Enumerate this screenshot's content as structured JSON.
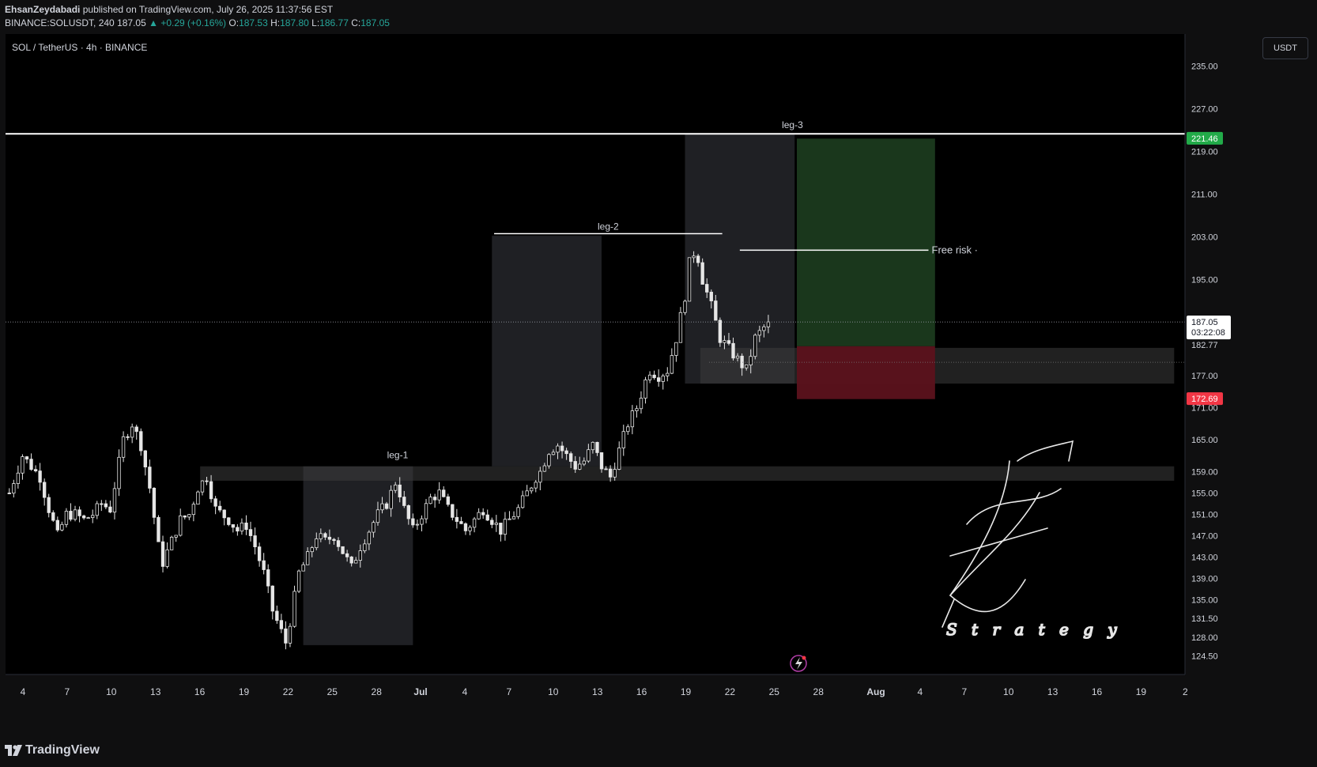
{
  "header": {
    "author": "EhsanZeydabadi",
    "published_text": "published on TradingView.com, July 26, 2025 11:37:56 EST",
    "ticker": "BINANCE:SOLUSDT, 240",
    "last": "187.05",
    "change": "▲ +0.29 (+0.16%)",
    "o_label": "O:",
    "o_value": "187.53",
    "h_label": "H:",
    "h_value": "187.80",
    "l_label": "L:",
    "l_value": "186.77",
    "c_label": "C:",
    "c_value": "187.05"
  },
  "chart_title": "SOL / TetherUS · 4h · BINANCE",
  "unit_button": "USDT",
  "footer": {
    "brand": "TradingView"
  },
  "colors": {
    "background": "#000000",
    "up": "#26a69a",
    "down": "#ef5350",
    "candles": "#e6e6e6",
    "profit_zone": "#1b3a1e",
    "loss_zone": "#5c121c",
    "resistance_line": "#ffffff",
    "price_label_green": "#22ab49",
    "price_label_red": "#f23645"
  },
  "icons": {
    "brand": "tradingview-logo-icon",
    "replay": "lightning-icon"
  },
  "chart_data": {
    "type": "candlestick",
    "instrument": "SOL / TetherUS",
    "timeframe": "4h",
    "exchange": "BINANCE",
    "ylim": [
      121,
      241
    ],
    "y_ticks": [
      "235.00",
      "227.00",
      "219.00",
      "211.00",
      "203.00",
      "195.00",
      "187.05",
      "182.77",
      "177.00",
      "171.00",
      "165.00",
      "159.00",
      "155.00",
      "151.00",
      "147.00",
      "143.00",
      "139.00",
      "135.00",
      "131.50",
      "128.00",
      "124.50"
    ],
    "x_ticks": [
      "4",
      "7",
      "10",
      "13",
      "16",
      "19",
      "22",
      "25",
      "28",
      "Jul",
      "4",
      "7",
      "10",
      "13",
      "16",
      "19",
      "22",
      "25",
      "28",
      "Aug",
      "4",
      "7",
      "10",
      "13",
      "16",
      "19",
      "2"
    ],
    "current_price": {
      "value": 187.05,
      "label": "187.05",
      "countdown": "03:22:08"
    },
    "price_labels": [
      {
        "value": 221.46,
        "label": "221.46",
        "color": "green"
      },
      {
        "value": 172.69,
        "label": "172.69",
        "color": "red"
      }
    ],
    "price_path": [
      [
        0,
        155
      ],
      [
        3,
        162
      ],
      [
        5,
        160
      ],
      [
        7,
        158
      ],
      [
        9,
        152
      ],
      [
        11,
        147
      ],
      [
        13,
        151
      ],
      [
        15,
        151
      ],
      [
        17,
        150
      ],
      [
        19,
        151
      ],
      [
        21,
        153
      ],
      [
        23,
        152
      ],
      [
        26,
        165
      ],
      [
        28,
        168
      ],
      [
        30,
        164
      ],
      [
        32,
        156
      ],
      [
        34,
        145
      ],
      [
        35,
        142
      ],
      [
        37,
        146
      ],
      [
        39,
        150
      ],
      [
        41,
        151
      ],
      [
        43,
        156
      ],
      [
        45,
        158
      ],
      [
        47,
        152
      ],
      [
        50,
        150
      ],
      [
        52,
        148
      ],
      [
        54,
        149
      ],
      [
        56,
        145
      ],
      [
        58,
        140
      ],
      [
        60,
        133
      ],
      [
        62,
        129
      ],
      [
        63,
        127
      ],
      [
        64,
        131
      ],
      [
        66,
        140
      ],
      [
        68,
        143
      ],
      [
        70,
        147
      ],
      [
        72,
        146
      ],
      [
        74,
        147
      ],
      [
        76,
        144
      ],
      [
        78,
        141
      ],
      [
        80,
        145
      ],
      [
        82,
        148
      ],
      [
        84,
        151
      ],
      [
        86,
        153
      ],
      [
        88,
        157
      ],
      [
        89,
        155
      ],
      [
        90,
        152
      ],
      [
        92,
        148
      ],
      [
        94,
        151
      ],
      [
        96,
        154
      ],
      [
        98,
        155
      ],
      [
        100,
        152
      ],
      [
        102,
        150
      ],
      [
        104,
        148
      ],
      [
        106,
        150
      ],
      [
        108,
        152
      ],
      [
        110,
        150
      ],
      [
        112,
        148
      ],
      [
        114,
        150
      ],
      [
        116,
        152
      ],
      [
        118,
        155
      ],
      [
        120,
        158
      ],
      [
        121,
        159
      ],
      [
        123,
        163
      ],
      [
        125,
        164
      ],
      [
        127,
        162
      ],
      [
        129,
        160
      ],
      [
        131,
        161
      ],
      [
        133,
        164
      ],
      [
        135,
        160
      ],
      [
        137,
        158
      ],
      [
        139,
        163
      ],
      [
        141,
        168
      ],
      [
        143,
        171
      ],
      [
        145,
        176
      ],
      [
        146,
        178
      ],
      [
        148,
        177
      ],
      [
        150,
        178
      ],
      [
        152,
        184
      ],
      [
        154,
        192
      ],
      [
        155,
        198
      ],
      [
        156,
        200
      ],
      [
        157,
        199
      ],
      [
        158,
        195
      ],
      [
        160,
        190
      ],
      [
        162,
        184
      ],
      [
        164,
        182
      ],
      [
        166,
        180
      ],
      [
        168,
        178
      ],
      [
        170,
        184
      ],
      [
        172,
        186
      ],
      [
        173,
        187.05
      ]
    ],
    "annotations": [
      {
        "type": "hline",
        "y": 222.3,
        "x_range": [
          0,
          270
        ],
        "label": "leg-3",
        "color": "#ffffff"
      },
      {
        "type": "segment",
        "y": 203.6,
        "x_range": [
          111,
          163
        ],
        "label": "leg-2",
        "color": "#ffffff"
      },
      {
        "type": "segment",
        "y": 200.5,
        "x_range": [
          167,
          210
        ],
        "label": "Free risk",
        "color": "#ffffff"
      },
      {
        "type": "label",
        "x": 89,
        "y": 160.3,
        "text": "leg-1"
      }
    ],
    "zones": [
      {
        "name": "leg-1 range",
        "x_range": [
          67.5,
          92.5
        ],
        "y_range": [
          126.5,
          160
        ],
        "color": "#2a2b30"
      },
      {
        "name": "leg-2 range",
        "x_range": [
          110.5,
          135.5
        ],
        "y_range": [
          160,
          203.2
        ],
        "color": "#2a2b30"
      },
      {
        "name": "leg-3 range",
        "x_range": [
          154.5,
          179.5
        ],
        "y_range": [
          175.5,
          222.3
        ],
        "color": "#2a2b30"
      },
      {
        "name": "support zone",
        "x_range": [
          44,
          266
        ],
        "y_range": [
          157.3,
          160
        ],
        "color": "#3c3c3c"
      },
      {
        "name": "demand zone",
        "x_range": [
          158,
          266
        ],
        "y_range": [
          175.5,
          182.2
        ],
        "color": "#3c3c3c"
      },
      {
        "name": "take-profit",
        "x_range": [
          180,
          211.5
        ],
        "y_range": [
          182.5,
          221.4
        ],
        "color": "#1b3a1e"
      },
      {
        "name": "stop-loss",
        "x_range": [
          180,
          211.5
        ],
        "y_range": [
          172.6,
          182.5
        ],
        "color": "#5c121c"
      }
    ],
    "watermark": {
      "text": "Strategy"
    }
  }
}
